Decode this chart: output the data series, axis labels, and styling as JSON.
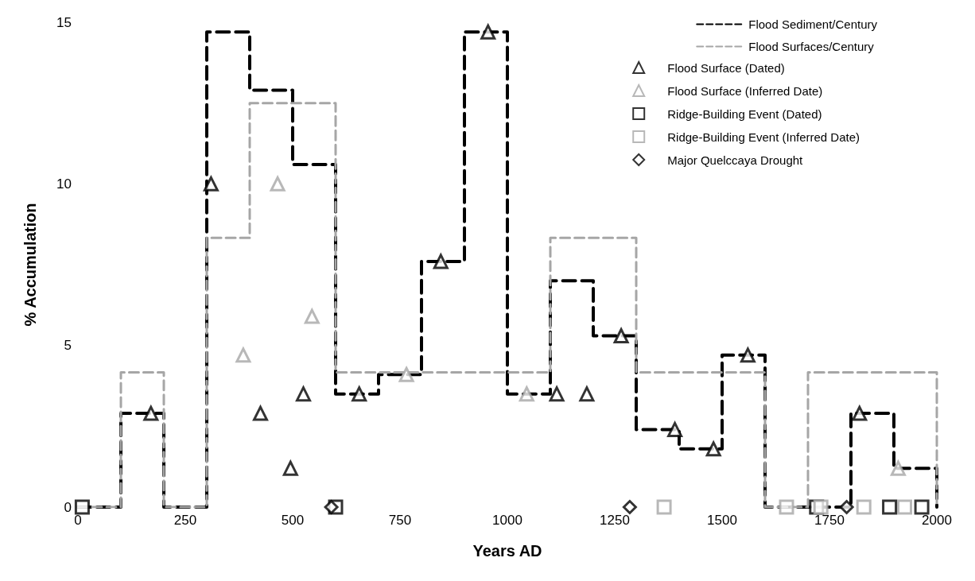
{
  "chart_data": {
    "type": "scatter",
    "xlabel": "Years AD",
    "ylabel": "% Accumulation",
    "xlim": [
      0,
      2000
    ],
    "xticks": [
      0,
      250,
      500,
      750,
      1000,
      1250,
      1500,
      1750,
      2000
    ],
    "ylim": [
      0,
      15
    ],
    "yticks": [
      0,
      5,
      10,
      15
    ],
    "legend": "top right",
    "series": [
      {
        "name": "Flood Sediment/Century",
        "type": "step",
        "line_style": "dashed",
        "marker": "none",
        "color": "#000000",
        "x": [
          0,
          100,
          200,
          300,
          400,
          500,
          600,
          700,
          800,
          900,
          1000,
          1100,
          1200,
          1300,
          1400,
          1500,
          1600,
          1700,
          1800,
          1900,
          2000
        ],
        "values": [
          0,
          2.9,
          0,
          14.7,
          12.9,
          10.6,
          3.5,
          4.1,
          7.6,
          14.7,
          3.5,
          7.0,
          5.3,
          2.4,
          1.8,
          4.7,
          0,
          0,
          2.9,
          1.2,
          0
        ]
      },
      {
        "name": "Flood Surfaces/Century",
        "type": "step",
        "line_style": "dashed",
        "marker": "none",
        "color": "#a6a6a6",
        "x": [
          0,
          100,
          200,
          300,
          400,
          500,
          600,
          700,
          800,
          900,
          1000,
          1100,
          1200,
          1300,
          1400,
          1500,
          1600,
          1700,
          1800,
          1900,
          2000
        ],
        "values": [
          0,
          4.17,
          0,
          8.33,
          12.5,
          12.5,
          4.17,
          4.17,
          4.17,
          4.17,
          4.17,
          8.33,
          8.33,
          4.17,
          4.17,
          4.17,
          0,
          4.17,
          4.17,
          4.17,
          0
        ]
      },
      {
        "name": "Flood Surface (Dated)",
        "marker": "triangle",
        "color": "#000000",
        "x": [
          170,
          310,
          425,
          495,
          525,
          655,
          845,
          955,
          1115,
          1185,
          1265,
          1390,
          1480,
          1560,
          1820
        ],
        "values": [
          2.9,
          10.0,
          2.9,
          1.2,
          3.5,
          3.5,
          7.6,
          14.7,
          3.5,
          3.5,
          5.3,
          2.4,
          1.8,
          4.7,
          2.9
        ]
      },
      {
        "name": "Flood Surface (Inferred Date)",
        "marker": "triangle",
        "color": "#a6a6a6",
        "x": [
          385,
          465,
          545,
          765,
          1045,
          1910
        ],
        "values": [
          4.7,
          10.0,
          5.9,
          4.1,
          3.5,
          1.2
        ]
      },
      {
        "name": "Ridge-Building Event (Dated)",
        "marker": "square",
        "color": "#000000",
        "x": [
          10,
          600,
          1720,
          1890,
          1965
        ],
        "values": [
          0,
          0,
          0,
          0,
          0
        ]
      },
      {
        "name": "Ridge-Building Event (Inferred Date)",
        "marker": "square",
        "color": "#a6a6a6",
        "x": [
          1365,
          1650,
          1730,
          1830,
          1925
        ],
        "values": [
          0,
          0,
          0,
          0,
          0
        ]
      },
      {
        "name": "Major Quelccaya Drought",
        "marker": "diamond",
        "color": "#000000",
        "x": [
          590,
          1285,
          1790
        ],
        "values": [
          0,
          0,
          0
        ]
      }
    ]
  }
}
